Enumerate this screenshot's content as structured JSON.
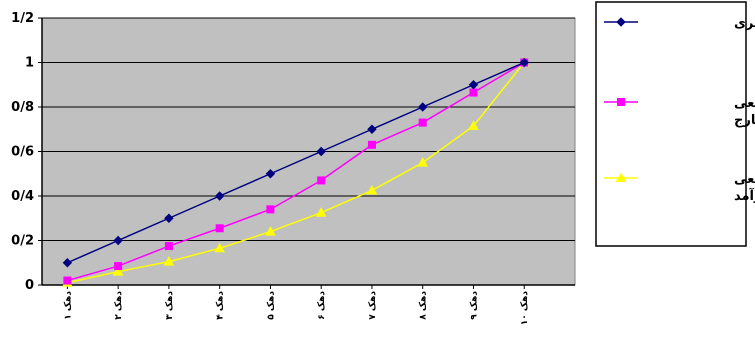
{
  "chart_data": {
    "type": "line",
    "title": "",
    "xlabel": "",
    "ylabel": "",
    "ylim": [
      0,
      1.2
    ],
    "yticks": [
      {
        "value": 0,
        "label": "0"
      },
      {
        "value": 0.2,
        "label": "0/2"
      },
      {
        "value": 0.4,
        "label": "0/4"
      },
      {
        "value": 0.6,
        "label": "0/6"
      },
      {
        "value": 0.8,
        "label": "0/8"
      },
      {
        "value": 1,
        "label": "1"
      },
      {
        "value": 1.2,
        "label": "1/2"
      }
    ],
    "categories": [
      "دهک ۱",
      "دهک ۲",
      "دهک ۳",
      "دهک ۴",
      "دهک ۵",
      "دهک ۶",
      "دهک ۷",
      "دهک ۸",
      "دهک ۹",
      "دهک ۱۰"
    ],
    "grid": true,
    "legend_position": "right",
    "plot_background": "#c0c0c0",
    "series": [
      {
        "name": "خط قطری",
        "color": "#000080",
        "marker": "diamond",
        "values": [
          0.1,
          0.2,
          0.3,
          0.4,
          0.5,
          0.6,
          0.7,
          0.8,
          0.9,
          1.0
        ]
      },
      {
        "name": "سهم تجمعی مخارج",
        "label_lines": [
          "سهم تجمعی",
          "مخارج"
        ],
        "color": "#ff00ff",
        "marker": "square",
        "values": [
          0.02,
          0.085,
          0.175,
          0.255,
          0.34,
          0.47,
          0.63,
          0.73,
          0.865,
          1.0
        ]
      },
      {
        "name": "سهم تجمعی درآمد",
        "label_lines": [
          "سهم تجمعی",
          "درآمد"
        ],
        "color": "#ffff00",
        "marker": "triangle",
        "values": [
          0.01,
          0.06,
          0.105,
          0.165,
          0.24,
          0.325,
          0.425,
          0.55,
          0.715,
          1.0
        ]
      }
    ]
  }
}
